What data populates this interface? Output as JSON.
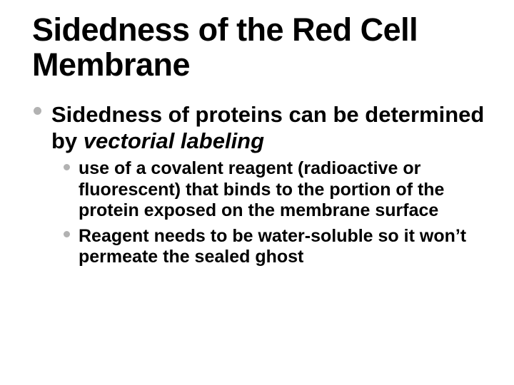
{
  "slide": {
    "title": "Sidedness of the Red Cell Membrane",
    "title_fontsize": 45,
    "bullet_color": "#b2b2b2",
    "text_color": "#000000",
    "background_color": "#ffffff",
    "level1": {
      "fontsize": 31,
      "text_before": "Sidedness of proteins can  be determined by ",
      "text_italic": "vectorial labeling"
    },
    "level2": {
      "fontsize": 25,
      "items": [
        "use of a covalent reagent (radioactive or fluorescent) that binds to the portion of the protein exposed on the membrane surface",
        "Reagent needs to be water-soluble so it won’t permeate the sealed ghost"
      ]
    }
  }
}
